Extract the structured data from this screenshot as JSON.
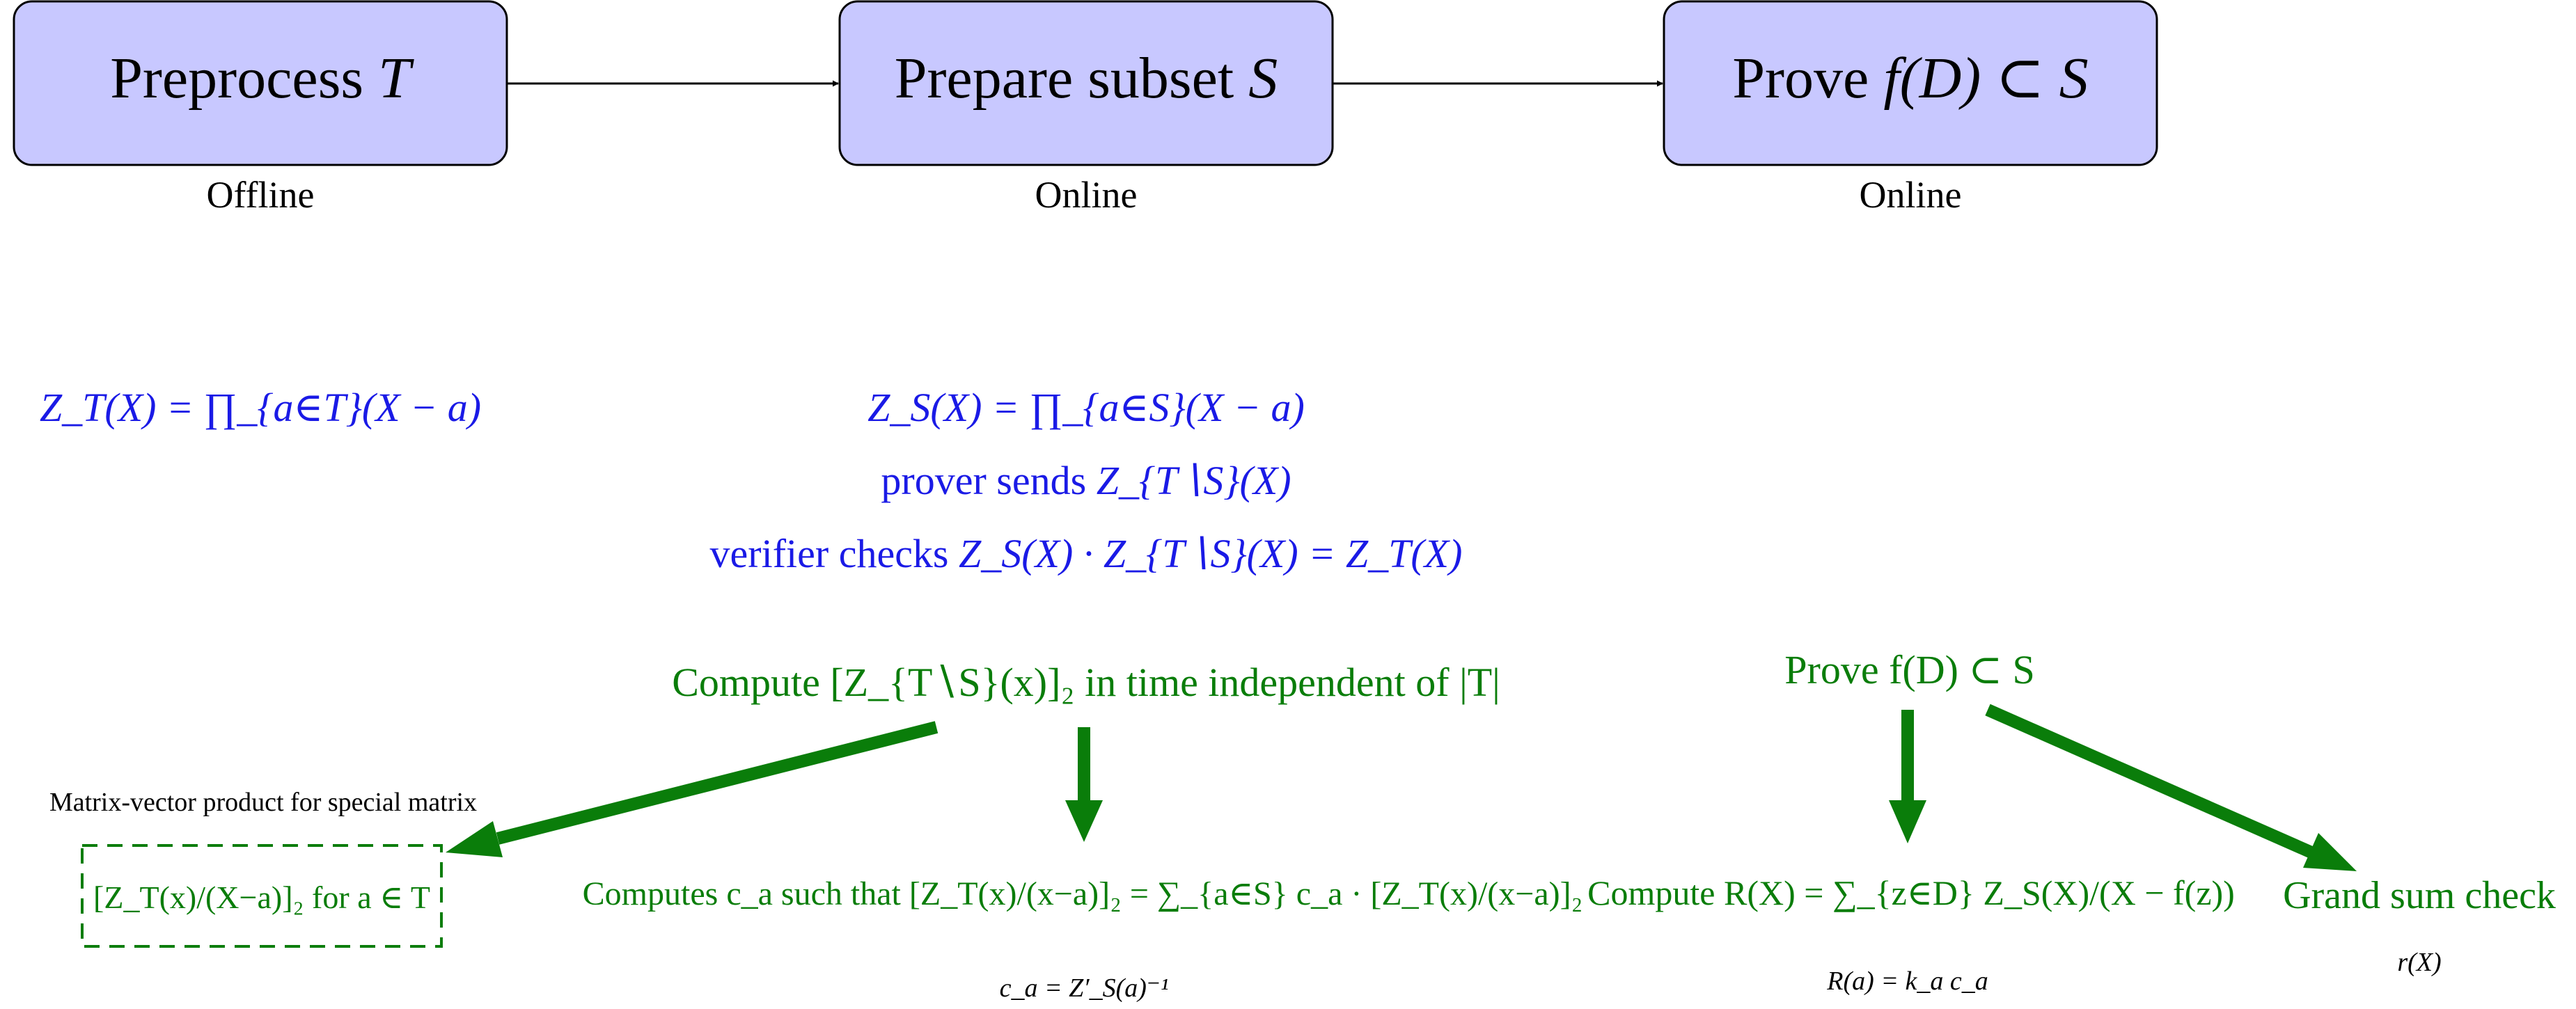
{
  "colors": {
    "box_fill": "#c8c8ff",
    "box_stroke": "#000000",
    "blue": "#1a1ae6",
    "green": "#0a7d0a",
    "black": "#000000"
  },
  "boxes": [
    {
      "title": "Preprocess",
      "var": "T",
      "caption": "Offline"
    },
    {
      "title": "Prepare subset",
      "var": "S",
      "caption": "Online"
    },
    {
      "title": "Prove",
      "var": "f(D) ⊂ S",
      "caption": "Online"
    }
  ],
  "formulas": {
    "zt": "Z_T(X) = ∏_{a∈T}(X − a)",
    "zs": "Z_S(X) = ∏_{a∈S}(X − a)",
    "prover_text": "prover sends",
    "prover_math": "Z_{T∖S}(X)",
    "verifier_text": "verifier checks",
    "verifier_math": "Z_S(X) · Z_{T∖S}(X) = Z_T(X)"
  },
  "compute_block": {
    "title": "Compute [Z_{T∖S}(x)]₂ in time independent of |T|",
    "left_label": "Matrix-vector product for special matrix",
    "left_box": "[Z_T(x)/(X−a)]₂ for a ∈ T",
    "center": "Computes c_a such that [Z_T(x)/(x−a)]₂ = ∑_{a∈S} c_a · [Z_T(x)/(x−a)]₂",
    "center_note": "c_a = Z′_S(a)⁻¹"
  },
  "prove_block": {
    "title": "Prove f(D) ⊂ S",
    "left": "Compute R(X) = ∑_{z∈D} Z_S(X)/(X − f(z))",
    "left_note": "R(a) = k_a c_a",
    "right": "Grand sum check",
    "right_note": "r(X)"
  }
}
